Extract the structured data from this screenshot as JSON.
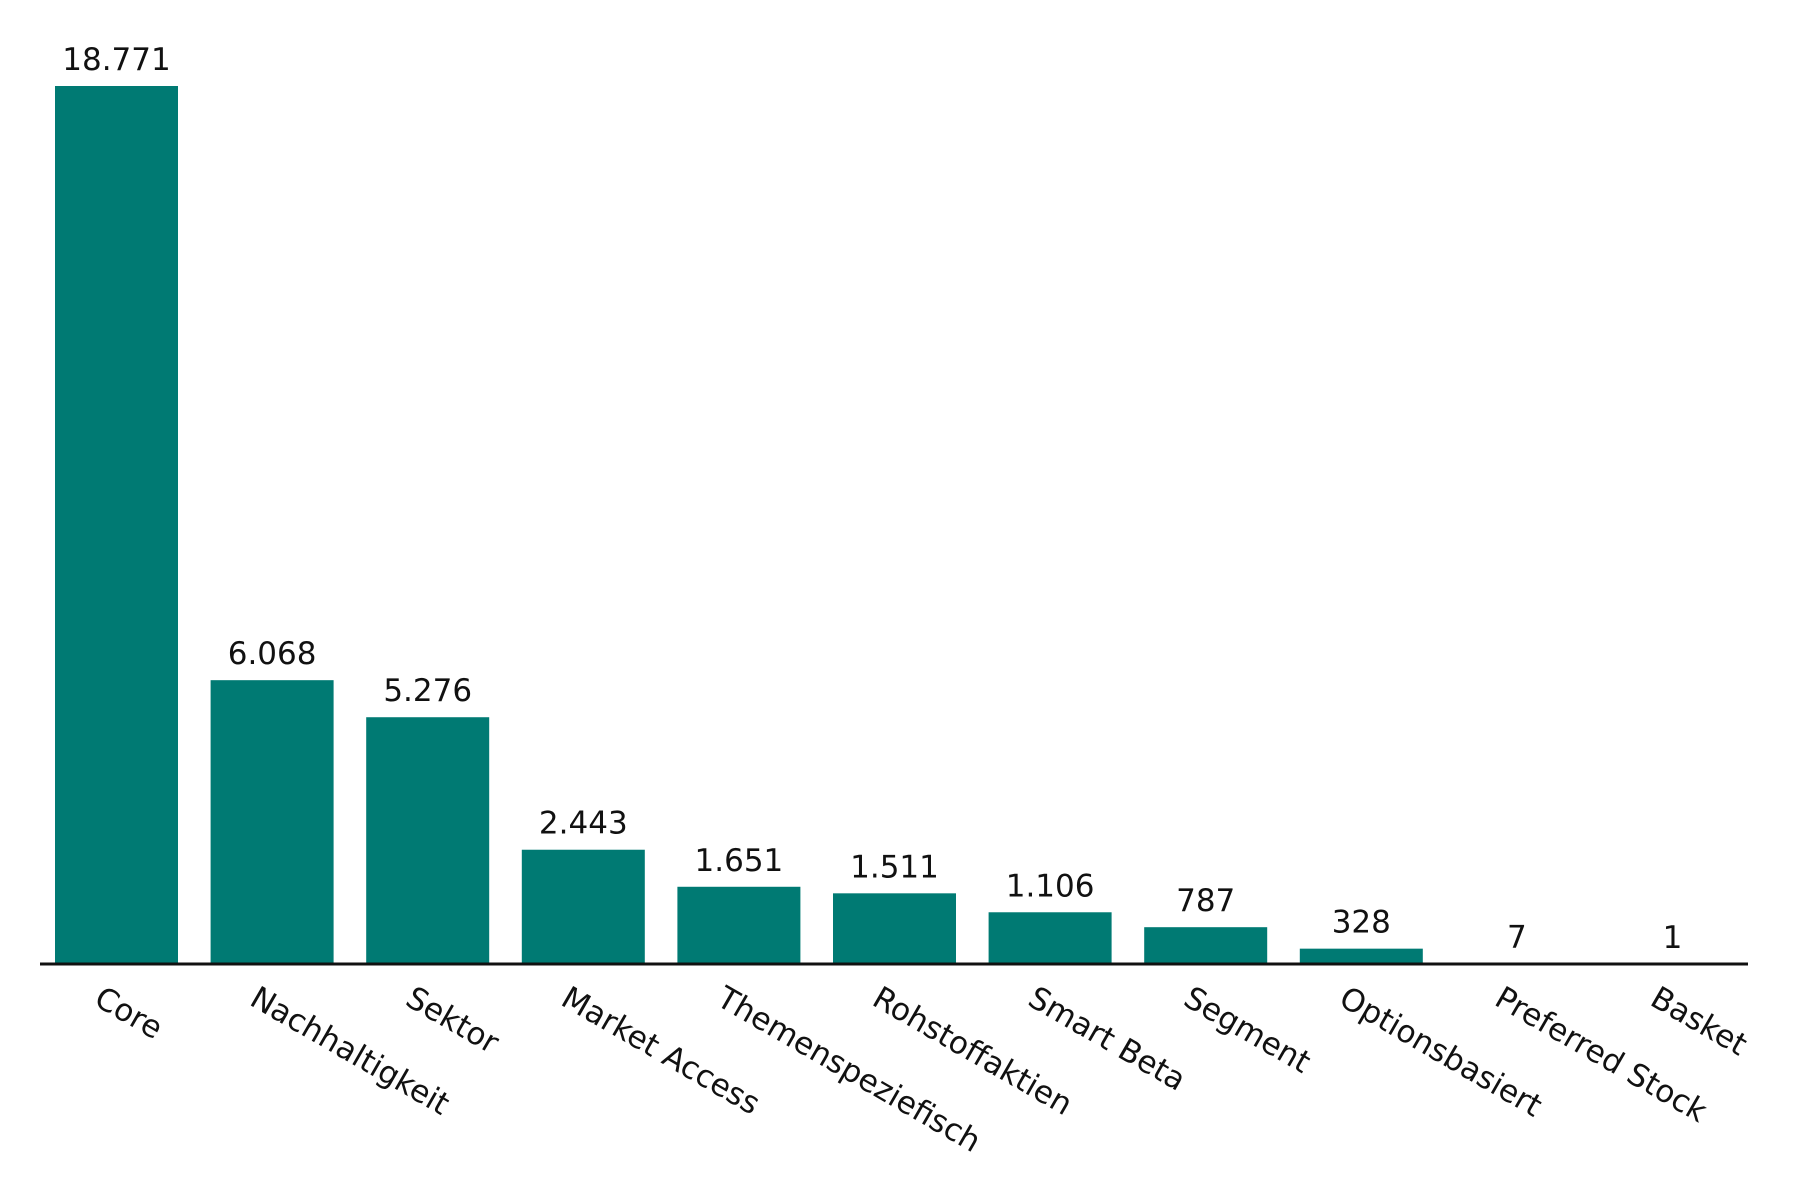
{
  "chart_data": {
    "type": "bar",
    "categories": [
      "Core",
      "Nachhaltigkeit",
      "Sektor",
      "Market Access",
      "Themenspeziefisch",
      "Rohstoffaktien",
      "Smart Beta",
      "Segment",
      "Optionsbasiert",
      "Preferred Stock",
      "Basket"
    ],
    "values": [
      18771,
      6068,
      5276,
      2443,
      1651,
      1511,
      1106,
      787,
      328,
      7,
      1
    ],
    "value_labels": [
      "18.771",
      "6.068",
      "5.276",
      "2.443",
      "1.651",
      "1.511",
      "1.106",
      "787",
      "328",
      "7",
      "1"
    ],
    "color": "#007a73"
  }
}
